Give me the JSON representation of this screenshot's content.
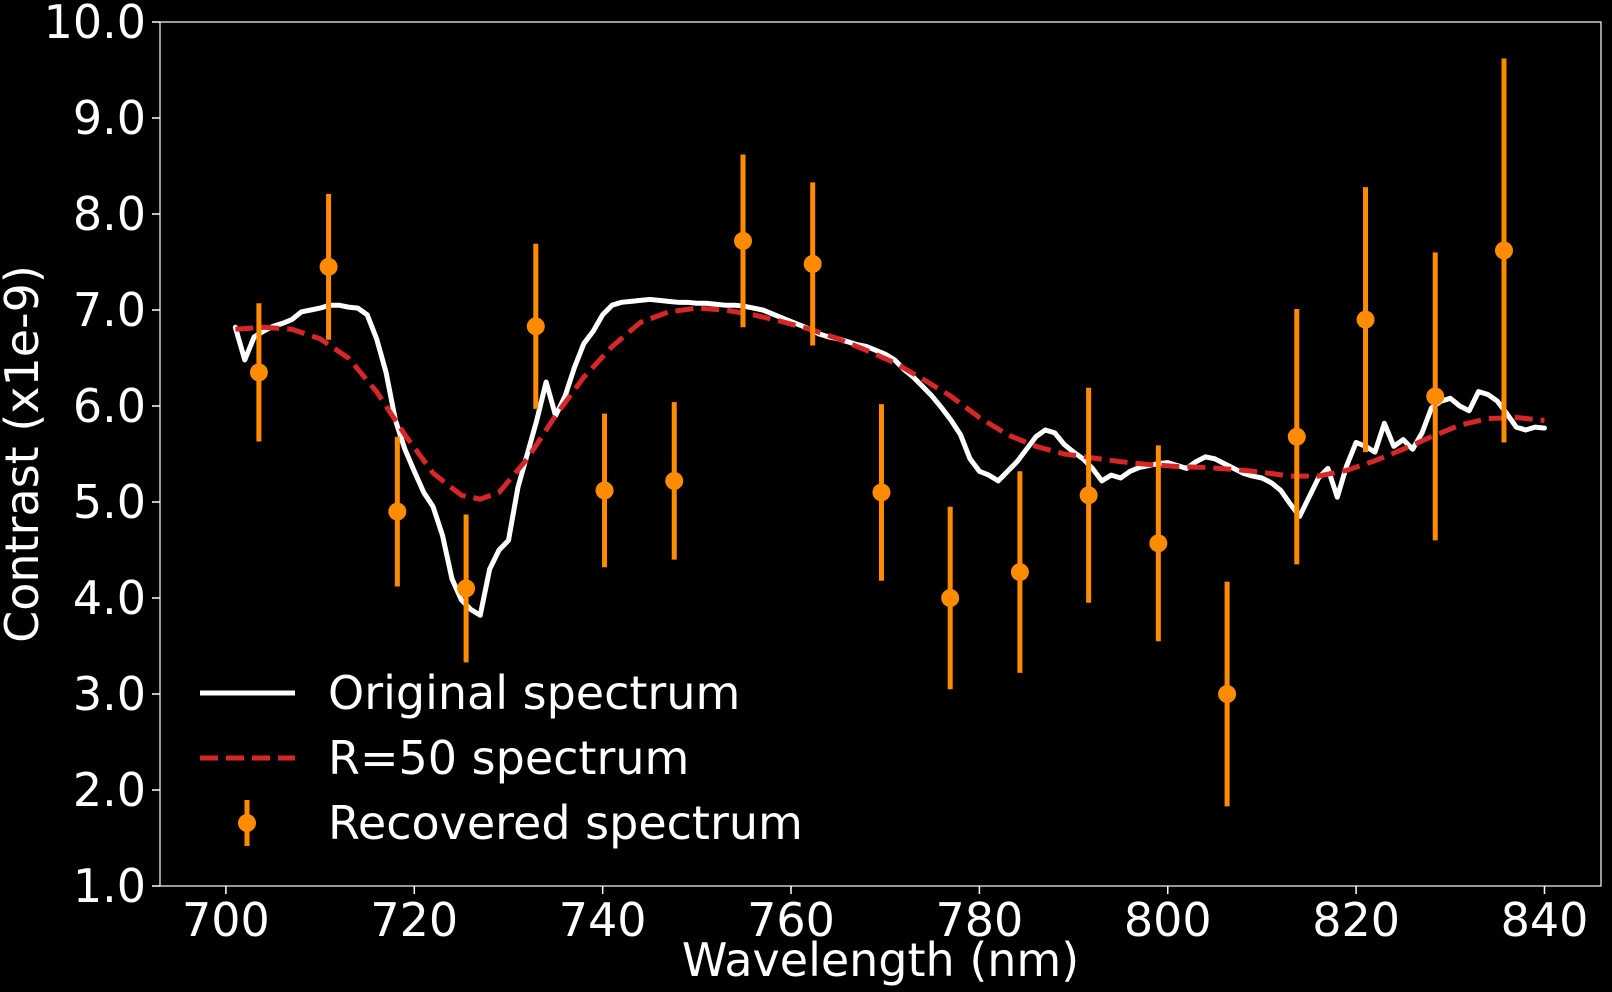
{
  "chart_data": {
    "type": "line",
    "xlabel": "Wavelength (nm)",
    "ylabel": "Contrast (x1e-9)",
    "xlim": [
      693,
      846
    ],
    "ylim": [
      1.0,
      10.0
    ],
    "xticks": [
      700,
      720,
      740,
      760,
      780,
      800,
      820,
      840
    ],
    "xtick_labels": [
      "700",
      "720",
      "740",
      "760",
      "780",
      "800",
      "820",
      "840"
    ],
    "yticks": [
      1,
      2,
      3,
      4,
      5,
      6,
      7,
      8,
      9,
      10
    ],
    "ytick_labels": [
      "1.0",
      "2.0",
      "3.0",
      "4.0",
      "5.0",
      "6.0",
      "7.0",
      "8.0",
      "9.0",
      "10.0"
    ],
    "grid": false,
    "legend_position": "lower-left",
    "background": "#000000",
    "series": [
      {
        "name": "Original spectrum",
        "kind": "line",
        "color": "#ffffff",
        "x": [
          701,
          702,
          703,
          704,
          705,
          706,
          707,
          708,
          709,
          710,
          711,
          712,
          713,
          714,
          715,
          716,
          717,
          718,
          719,
          720,
          721,
          722,
          723,
          724,
          725,
          726,
          727,
          728,
          729,
          730,
          731,
          732,
          733,
          734,
          735,
          736,
          737,
          738,
          739,
          740,
          741,
          742,
          743,
          744,
          745,
          746,
          747,
          748,
          749,
          750,
          751,
          752,
          753,
          754,
          755,
          756,
          757,
          758,
          759,
          760,
          761,
          762,
          763,
          764,
          765,
          766,
          767,
          768,
          769,
          770,
          771,
          772,
          773,
          774,
          775,
          776,
          777,
          778,
          779,
          780,
          781,
          782,
          783,
          784,
          785,
          786,
          787,
          788,
          789,
          790,
          791,
          792,
          793,
          794,
          795,
          796,
          797,
          798,
          799,
          800,
          801,
          802,
          803,
          804,
          805,
          806,
          807,
          808,
          809,
          810,
          811,
          812,
          813,
          814,
          815,
          816,
          817,
          818,
          819,
          820,
          821,
          822,
          823,
          824,
          825,
          826,
          827,
          828,
          829,
          830,
          831,
          832,
          833,
          834,
          835,
          836,
          837,
          838,
          839,
          840
        ],
        "y": [
          6.82,
          6.48,
          6.72,
          6.78,
          6.83,
          6.86,
          6.9,
          6.98,
          7.0,
          7.02,
          7.05,
          7.05,
          7.03,
          7.02,
          6.95,
          6.7,
          6.35,
          5.85,
          5.55,
          5.32,
          5.1,
          4.95,
          4.65,
          4.2,
          3.98,
          3.88,
          3.82,
          4.3,
          4.5,
          4.6,
          5.15,
          5.5,
          5.85,
          6.25,
          5.9,
          6.1,
          6.4,
          6.65,
          6.78,
          6.95,
          7.05,
          7.08,
          7.09,
          7.1,
          7.11,
          7.1,
          7.09,
          7.08,
          7.08,
          7.07,
          7.07,
          7.06,
          7.05,
          7.05,
          7.04,
          7.02,
          7.0,
          6.96,
          6.92,
          6.88,
          6.84,
          6.8,
          6.75,
          6.72,
          6.7,
          6.67,
          6.64,
          6.62,
          6.58,
          6.54,
          6.48,
          6.38,
          6.3,
          6.2,
          6.1,
          5.98,
          5.85,
          5.7,
          5.45,
          5.32,
          5.28,
          5.22,
          5.32,
          5.42,
          5.55,
          5.68,
          5.75,
          5.72,
          5.6,
          5.52,
          5.45,
          5.35,
          5.22,
          5.28,
          5.25,
          5.32,
          5.36,
          5.38,
          5.4,
          5.41,
          5.38,
          5.35,
          5.42,
          5.47,
          5.45,
          5.4,
          5.35,
          5.3,
          5.27,
          5.25,
          5.2,
          5.12,
          4.98,
          4.85,
          5.05,
          5.25,
          5.35,
          5.05,
          5.38,
          5.62,
          5.58,
          5.52,
          5.82,
          5.58,
          5.65,
          5.55,
          5.72,
          5.98,
          6.05,
          6.08,
          6.0,
          5.95,
          6.15,
          6.12,
          6.05,
          5.92,
          5.78,
          5.75,
          5.78,
          5.77
        ],
        "label_points": [
          {
            "x": 701,
            "y": 6.82
          },
          {
            "x": 702,
            "y": 6.48
          },
          {
            "x": 713,
            "y": 7.05
          },
          {
            "x": 727,
            "y": 3.82
          },
          {
            "x": 735,
            "y": 6.25
          },
          {
            "x": 745,
            "y": 7.11
          },
          {
            "x": 789,
            "y": 5.75
          }
        ]
      },
      {
        "name": "R=50 spectrum",
        "kind": "dashed-line",
        "color": "#d62728",
        "x": [
          701,
          704,
          707,
          710,
          713,
          716,
          719,
          722,
          725,
          727,
          729,
          732,
          735,
          738,
          741,
          744,
          747,
          750,
          753,
          756,
          759,
          762,
          765,
          768,
          771,
          774,
          777,
          780,
          783,
          786,
          789,
          792,
          795,
          798,
          801,
          804,
          807,
          810,
          813,
          816,
          819,
          822,
          825,
          828,
          831,
          834,
          837,
          840
        ],
        "y": [
          6.8,
          6.82,
          6.8,
          6.7,
          6.5,
          6.15,
          5.7,
          5.3,
          5.07,
          5.03,
          5.1,
          5.45,
          5.9,
          6.3,
          6.62,
          6.87,
          6.98,
          7.02,
          7.0,
          6.95,
          6.88,
          6.8,
          6.7,
          6.58,
          6.45,
          6.28,
          6.1,
          5.88,
          5.7,
          5.58,
          5.5,
          5.46,
          5.42,
          5.39,
          5.37,
          5.36,
          5.34,
          5.31,
          5.27,
          5.27,
          5.33,
          5.43,
          5.55,
          5.68,
          5.8,
          5.87,
          5.88,
          5.85
        ]
      },
      {
        "name": "Recovered spectrum",
        "kind": "errorbar",
        "color": "#ff8c00",
        "x": [
          703.5,
          710.9,
          718.2,
          725.5,
          732.9,
          740.2,
          747.6,
          754.9,
          762.3,
          769.6,
          776.9,
          784.3,
          791.6,
          799.0,
          806.3,
          813.7,
          821.0,
          828.4,
          835.7
        ],
        "y": [
          6.35,
          7.45,
          4.9,
          4.1,
          6.83,
          5.12,
          5.22,
          7.72,
          7.48,
          5.1,
          4.0,
          4.27,
          5.07,
          4.57,
          3.0,
          5.68,
          6.9,
          6.1,
          7.62
        ],
        "yerr": [
          0.72,
          0.76,
          0.78,
          0.77,
          0.86,
          0.8,
          0.82,
          0.9,
          0.85,
          0.92,
          0.95,
          1.05,
          1.12,
          1.02,
          1.17,
          1.33,
          1.38,
          1.5,
          2.0
        ]
      }
    ]
  }
}
